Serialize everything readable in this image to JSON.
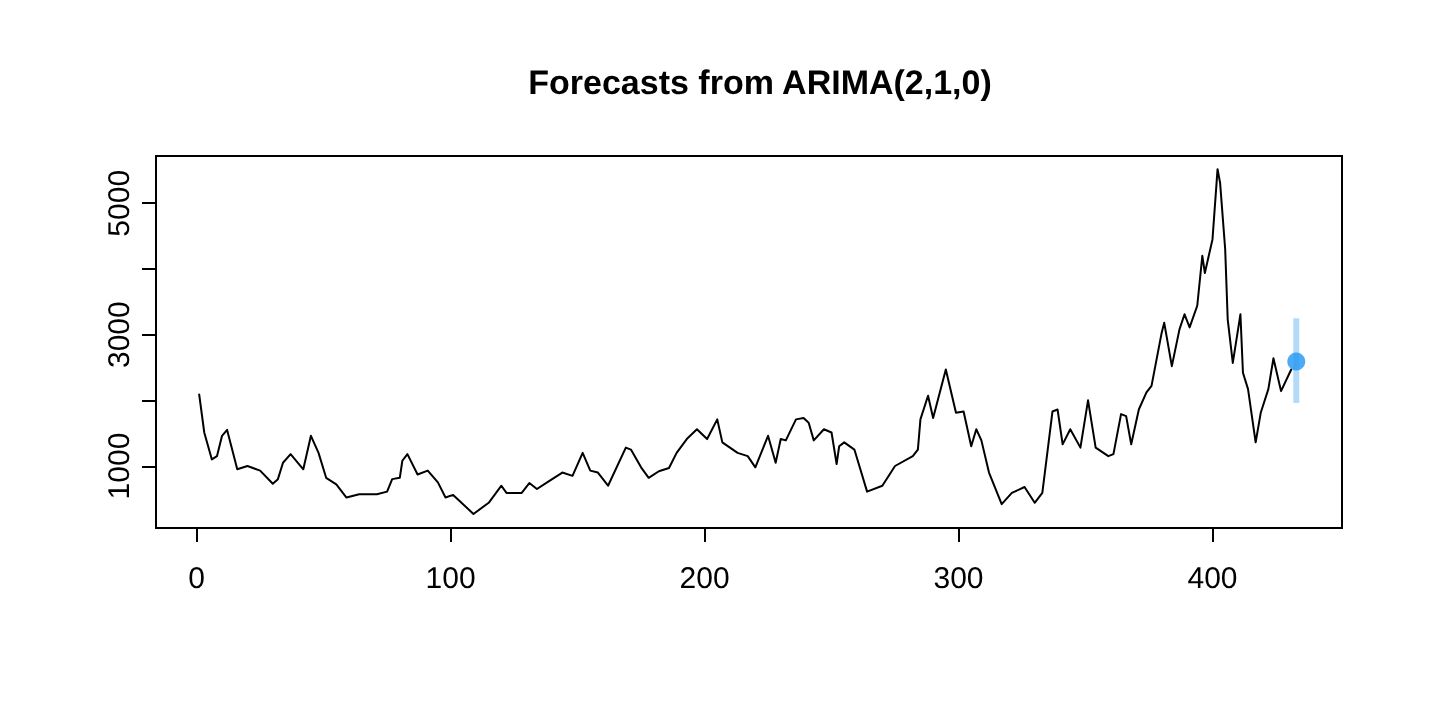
{
  "chart_data": {
    "type": "line",
    "title": "Forecasts from ARIMA(2,1,0)",
    "xlim": [
      -16,
      451
    ],
    "xticks": [
      0,
      100,
      200,
      300,
      400
    ],
    "ylim": [
      56,
      5720
    ],
    "yticks": [
      1000,
      {
        "value": 2000,
        "label": null
      },
      3000,
      {
        "value": 4000,
        "label": null
      },
      5000
    ],
    "grid": false,
    "series": [
      {
        "color": "#000000",
        "marker": "none",
        "line_style": "solid",
        "x": [
          1,
          3,
          6,
          8,
          10,
          12,
          16,
          20,
          25,
          30,
          32,
          34,
          37,
          42,
          45,
          48,
          51,
          55,
          59,
          64,
          71,
          75,
          77,
          80,
          81,
          83,
          87,
          91,
          95,
          98,
          101,
          109,
          115,
          120,
          122,
          128,
          131,
          134,
          138,
          144,
          148,
          152,
          155,
          158,
          162,
          169,
          171,
          175,
          178,
          182,
          186,
          189,
          193,
          197,
          201,
          205,
          207,
          213,
          217,
          220,
          225,
          228,
          230,
          232,
          236,
          239,
          241,
          243,
          247,
          250,
          252,
          253,
          255,
          259,
          264,
          270,
          275,
          282,
          284,
          285,
          288,
          290,
          295,
          299,
          302,
          305,
          307,
          309,
          312,
          317,
          321,
          326,
          330,
          333,
          337,
          339,
          341,
          344,
          348,
          351,
          354,
          359,
          361,
          364,
          366,
          368,
          371,
          374,
          376,
          380,
          381,
          384,
          387,
          389,
          391,
          394,
          396,
          397,
          400,
          402,
          403,
          405,
          406,
          408,
          411,
          412,
          414,
          417,
          419,
          422,
          424,
          427,
          431
        ],
        "values": [
          2090,
          1510,
          1100,
          1150,
          1460,
          1550,
          950,
          1000,
          930,
          730,
          800,
          1050,
          1180,
          950,
          1460,
          1200,
          820,
          720,
          520,
          570,
          570,
          610,
          800,
          820,
          1080,
          1180,
          870,
          930,
          750,
          520,
          560,
          270,
          440,
          700,
          590,
          590,
          740,
          650,
          750,
          900,
          850,
          1200,
          930,
          900,
          700,
          1280,
          1250,
          980,
          820,
          920,
          970,
          1200,
          1410,
          1560,
          1410,
          1710,
          1360,
          1200,
          1150,
          980,
          1460,
          1050,
          1410,
          1390,
          1710,
          1730,
          1660,
          1390,
          1560,
          1510,
          1030,
          1300,
          1360,
          1250,
          610,
          700,
          1000,
          1150,
          1250,
          1710,
          2070,
          1730,
          2470,
          1810,
          1830,
          1300,
          1560,
          1390,
          900,
          420,
          590,
          680,
          440,
          590,
          1830,
          1860,
          1330,
          1560,
          1280,
          2000,
          1280,
          1150,
          1180,
          1790,
          1760,
          1330,
          1860,
          2120,
          2220,
          3030,
          3180,
          2520,
          3080,
          3310,
          3110,
          3440,
          4200,
          3940,
          4450,
          5520,
          5310,
          4300,
          3230,
          2570,
          3310,
          2420,
          2170,
          1360,
          1810,
          2170,
          2640,
          2140,
          2470
        ]
      },
      {
        "type": "scatter",
        "color": "#2196f3",
        "marker": "circle",
        "x": [
          433
        ],
        "values": [
          2590
        ],
        "errors": [
          [
            1960,
            3250
          ]
        ]
      }
    ]
  }
}
